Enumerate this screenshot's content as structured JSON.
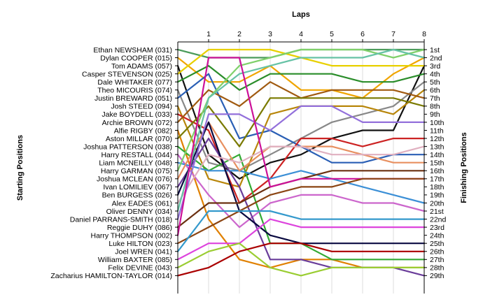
{
  "chart_data": {
    "type": "line",
    "title": "",
    "xlabel": "Laps",
    "ylabel_left": "Starting Positions",
    "ylabel_right": "Finishing Positions",
    "x": [
      0,
      1,
      2,
      3,
      4,
      5,
      6,
      7,
      8
    ],
    "x_ticks": [
      "1",
      "2",
      "3",
      "4",
      "5",
      "6",
      "7",
      "8"
    ],
    "grid": true,
    "drivers": [
      "Ethan NEWSHAM (031)",
      "Dylan COOPER (015)",
      "Tom ADAMS (057)",
      "Casper STEVENSON (025)",
      "Dale WHITAKER (077)",
      "Theo MICOURIS (074)",
      "Justin BREWARD (051)",
      "Josh STEED (094)",
      "Jake BOYDELL (033)",
      "Archie BROWN (072)",
      "Alfie RIGBY (082)",
      "Aston MILLAR (070)",
      "Joshua PATTERSON (038)",
      "Harry RESTALL (044)",
      "Liam MCNEILLY (048)",
      "Harry GARMAN (075)",
      "Joshua MCLEAN (076)",
      "Ivan LOMILIEV (067)",
      "Ben BURGESS (026)",
      "Alex EADES (061)",
      "Oliver DENNY (034)",
      "Daniel PARRANS-SMITH (018)",
      "Reggie DUHY (086)",
      "Harry THOMPSON (002)",
      "Luke HILTON (023)",
      "Joel WREN (041)",
      "William BAXTER (085)",
      "Felix DEVINE (043)",
      "Zacharius HAMILTON-TAYLOR (014)"
    ],
    "finishing_labels": [
      "1st",
      "2nd",
      "3rd",
      "4th",
      "5th",
      "6th",
      "7th",
      "8th",
      "9th",
      "10th",
      "11th",
      "12th",
      "13th",
      "14th",
      "15th",
      "16th",
      "17th",
      "18th",
      "19th",
      "20th",
      "21st",
      "22nd",
      "23rd",
      "24th",
      "25th",
      "26th",
      "27th",
      "28th",
      "29th"
    ],
    "series": [
      {
        "color": "#4b9b5a",
        "values": [
          1,
          2,
          2,
          2,
          1,
          1,
          1,
          1,
          1
        ]
      },
      {
        "color": "#f0a500",
        "values": [
          2,
          5,
          5,
          3,
          6,
          6,
          7,
          4,
          2
        ]
      },
      {
        "color": "#111111",
        "values": [
          3,
          14,
          17,
          15,
          14,
          12,
          11,
          11,
          3
        ]
      },
      {
        "color": "#e8d000",
        "values": [
          4,
          1,
          1,
          1,
          2,
          3,
          3,
          3,
          3
        ]
      },
      {
        "color": "#2a8d2a",
        "values": [
          5,
          3,
          6,
          4,
          4,
          4,
          5,
          5,
          4
        ]
      },
      {
        "color": "#888888",
        "values": [
          6,
          15,
          16,
          14,
          12,
          10,
          9,
          8,
          5
        ]
      },
      {
        "color": "#2a5fb5",
        "values": [
          7,
          4,
          12,
          11,
          13,
          15,
          15,
          14,
          14
        ]
      },
      {
        "color": "#b8860b",
        "values": [
          8,
          17,
          18,
          9,
          8,
          8,
          8,
          9,
          6
        ]
      },
      {
        "color": "#cc2222",
        "values": [
          9,
          11,
          20,
          17,
          12,
          12,
          13,
          12,
          12
        ]
      },
      {
        "color": "#a05a10",
        "values": [
          10,
          6,
          8,
          5,
          7,
          6,
          6,
          6,
          7
        ]
      },
      {
        "color": "#e08000",
        "values": [
          11,
          22,
          27,
          28,
          27,
          27,
          28,
          28,
          28
        ]
      },
      {
        "color": "#7a7a00",
        "values": [
          12,
          8,
          13,
          7,
          7,
          7,
          7,
          7,
          8
        ]
      },
      {
        "color": "#33aa33",
        "values": [
          13,
          16,
          14,
          25,
          25,
          27,
          27,
          27,
          27
        ]
      },
      {
        "color": "#cc66cc",
        "values": [
          14,
          19,
          23,
          20,
          19,
          19,
          20,
          20,
          21
        ]
      },
      {
        "color": "#3b8fd6",
        "values": [
          15,
          16,
          16,
          17,
          16,
          17,
          18,
          19,
          20
        ]
      },
      {
        "color": "#7fd06a",
        "values": [
          16,
          7,
          3,
          2,
          1,
          1,
          1,
          2,
          1
        ]
      },
      {
        "color": "#e89060",
        "values": [
          17,
          10,
          16,
          13,
          13,
          13,
          14,
          15,
          15
        ]
      },
      {
        "color": "#6a3d9a",
        "values": [
          18,
          12,
          18,
          27,
          27,
          28,
          28,
          28,
          29
        ]
      },
      {
        "color": "#0a0a40",
        "values": [
          19,
          10,
          21,
          24,
          25,
          25,
          25,
          25,
          25
        ]
      },
      {
        "color": "#e0b0c0",
        "values": [
          20,
          14,
          15,
          13,
          13,
          14,
          14,
          14,
          13
        ]
      },
      {
        "color": "#66c2a5",
        "values": [
          21,
          7,
          4,
          3,
          2,
          2,
          2,
          1,
          2
        ]
      },
      {
        "color": "#9370db",
        "values": [
          22,
          9,
          9,
          11,
          8,
          8,
          10,
          10,
          10
        ]
      },
      {
        "color": "#6b3010",
        "values": [
          23,
          20,
          20,
          18,
          17,
          16,
          16,
          16,
          16
        ]
      },
      {
        "color": "#cc1199",
        "values": [
          24,
          2,
          2,
          18,
          17,
          17,
          17,
          17,
          17
        ]
      },
      {
        "color": "#8b4513",
        "values": [
          25,
          23,
          21,
          19,
          18,
          18,
          17,
          17,
          17
        ]
      },
      {
        "color": "#3399cc",
        "values": [
          26,
          21,
          21,
          21,
          22,
          22,
          22,
          22,
          22
        ]
      },
      {
        "color": "#dd44dd",
        "values": [
          27,
          25,
          25,
          22,
          23,
          23,
          23,
          23,
          23
        ]
      },
      {
        "color": "#9acd32",
        "values": [
          28,
          26,
          25,
          28,
          29,
          28,
          28,
          28,
          28
        ]
      },
      {
        "color": "#aa0000",
        "values": [
          29,
          28,
          26,
          25,
          25,
          26,
          26,
          26,
          26
        ]
      }
    ]
  }
}
